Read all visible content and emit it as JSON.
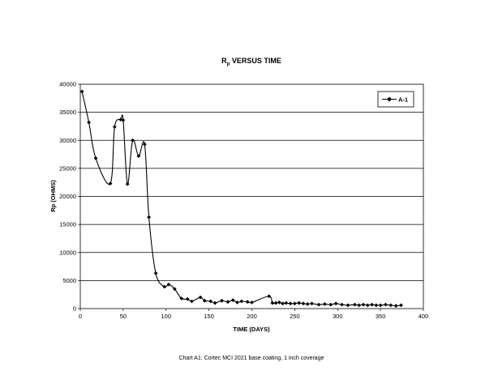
{
  "chart_data": {
    "type": "line",
    "title": {
      "main": "R",
      "sub": "p",
      "rest": " VERSUS TIME"
    },
    "xlabel": "TIME (DAYS)",
    "ylabel": "Rp (OHMS)",
    "xlim": [
      0,
      400
    ],
    "ylim": [
      0,
      40000
    ],
    "xticks": [
      0,
      50,
      100,
      150,
      200,
      250,
      300,
      350,
      400
    ],
    "yticks": [
      0,
      5000,
      10000,
      15000,
      20000,
      25000,
      30000,
      35000,
      40000
    ],
    "grid": "horizontal",
    "legend_position": "top-right",
    "series": [
      {
        "name": "A-1",
        "color": "#000000",
        "marker": "diamond",
        "x": [
          2,
          10,
          18,
          35,
          40,
          47,
          50,
          55,
          61,
          68,
          75,
          80,
          88,
          98,
          103,
          110,
          118,
          125,
          130,
          140,
          145,
          152,
          157,
          165,
          172,
          178,
          183,
          188,
          195,
          200,
          220,
          224,
          228,
          232,
          236,
          240,
          245,
          250,
          255,
          260,
          265,
          270,
          278,
          285,
          292,
          298,
          305,
          312,
          320,
          325,
          330,
          335,
          340,
          345,
          350,
          356,
          362,
          368,
          374
        ],
        "y": [
          38700,
          33200,
          26800,
          22300,
          32400,
          33700,
          33600,
          22200,
          30000,
          27200,
          29300,
          16300,
          6300,
          3900,
          4300,
          3500,
          1800,
          1700,
          1300,
          2000,
          1400,
          1300,
          1000,
          1400,
          1200,
          1500,
          1100,
          1300,
          1200,
          1100,
          2200,
          1000,
          1000,
          1100,
          900,
          1000,
          900,
          900,
          1000,
          900,
          800,
          900,
          700,
          800,
          700,
          900,
          700,
          600,
          700,
          600,
          700,
          600,
          700,
          600,
          600,
          700,
          600,
          500,
          600
        ]
      }
    ]
  },
  "caption": "Chart A1: Cortec MCI 2021 base coating, 1 inch coverage"
}
